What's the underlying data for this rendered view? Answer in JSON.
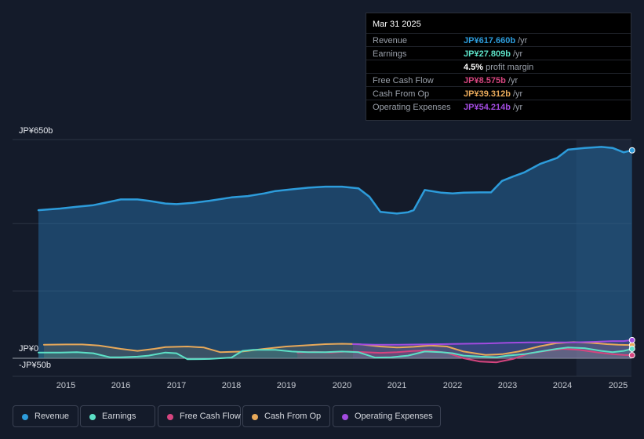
{
  "tooltip": {
    "date": "Mar 31 2025",
    "rows": [
      {
        "label": "Revenue",
        "value": "JP¥617.660b",
        "unit": " /yr",
        "color": "#2d9cdb"
      },
      {
        "label": "Earnings",
        "value": "JP¥27.809b",
        "unit": " /yr",
        "color": "#5ce0c6"
      },
      {
        "label": "",
        "value": "4.5%",
        "unit": " profit margin",
        "color": "#ffffff"
      },
      {
        "label": "Free Cash Flow",
        "value": "JP¥8.575b",
        "unit": " /yr",
        "color": "#d6457f"
      },
      {
        "label": "Cash From Op",
        "value": "JP¥39.312b",
        "unit": " /yr",
        "color": "#e8a95a"
      },
      {
        "label": "Operating Expenses",
        "value": "JP¥54.214b",
        "unit": " /yr",
        "color": "#a24be0"
      }
    ]
  },
  "legend": [
    {
      "label": "Revenue",
      "color": "#2d9cdb"
    },
    {
      "label": "Earnings",
      "color": "#5ce0c6"
    },
    {
      "label": "Free Cash Flow",
      "color": "#d6457f"
    },
    {
      "label": "Cash From Op",
      "color": "#e8a95a"
    },
    {
      "label": "Operating Expenses",
      "color": "#a24be0"
    }
  ],
  "chart_data": {
    "type": "area",
    "title": "",
    "y_tick_labels": [
      "JP¥650b",
      "JP¥0",
      "-JP¥50b"
    ],
    "ylim": [
      -50,
      650
    ],
    "x_ticks": [
      2015,
      2016,
      2017,
      2018,
      2019,
      2020,
      2021,
      2022,
      2023,
      2024,
      2025
    ],
    "x_tick_labels": [
      "2015",
      "2016",
      "2017",
      "2018",
      "2019",
      "2020",
      "2021",
      "2022",
      "2023",
      "2024",
      "2025"
    ],
    "xlim": [
      2014.4,
      2025.3
    ],
    "forecast_start": 2024.25,
    "series": [
      {
        "name": "Revenue",
        "color": "#2d9cdb",
        "x": [
          2014.5,
          2014.9,
          2015.2,
          2015.5,
          2015.8,
          2016.0,
          2016.3,
          2016.5,
          2016.8,
          2017.0,
          2017.3,
          2017.6,
          2018.0,
          2018.3,
          2018.6,
          2018.8,
          2019.1,
          2019.4,
          2019.7,
          2020.0,
          2020.3,
          2020.5,
          2020.7,
          2021.0,
          2021.2,
          2021.3,
          2021.5,
          2021.8,
          2022.0,
          2022.2,
          2022.5,
          2022.7,
          2022.9,
          2023.1,
          2023.3,
          2023.6,
          2023.9,
          2024.1,
          2024.4,
          2024.7,
          2024.9,
          2025.1,
          2025.25
        ],
        "y": [
          440,
          445,
          450,
          455,
          465,
          472,
          472,
          468,
          460,
          458,
          462,
          468,
          478,
          482,
          490,
          497,
          502,
          507,
          510,
          510,
          505,
          480,
          435,
          430,
          434,
          440,
          500,
          492,
          490,
          492,
          493,
          493,
          527,
          540,
          552,
          578,
          595,
          620,
          625,
          628,
          625,
          612,
          618
        ]
      },
      {
        "name": "Earnings",
        "color": "#5ce0c6",
        "x": [
          2014.5,
          2014.9,
          2015.2,
          2015.5,
          2015.8,
          2016.0,
          2016.3,
          2016.5,
          2016.8,
          2017.0,
          2017.2,
          2017.6,
          2018.0,
          2018.2,
          2018.4,
          2018.8,
          2019.1,
          2019.4,
          2019.7,
          2020.0,
          2020.3,
          2020.6,
          2020.9,
          2021.2,
          2021.5,
          2021.8,
          2022.0,
          2022.2,
          2022.5,
          2022.8,
          2023.0,
          2023.3,
          2023.6,
          2023.9,
          2024.1,
          2024.4,
          2024.7,
          2024.9,
          2025.1,
          2025.25
        ],
        "y": [
          17,
          17,
          18,
          15,
          3,
          3,
          5,
          8,
          17,
          15,
          -3,
          -2,
          2,
          22,
          25,
          25,
          20,
          18,
          18,
          20,
          18,
          2,
          3,
          8,
          20,
          18,
          15,
          8,
          5,
          3,
          8,
          12,
          20,
          28,
          32,
          30,
          22,
          18,
          22,
          28
        ]
      },
      {
        "name": "Free Cash Flow",
        "color": "#d6457f",
        "x": [
          2019.2,
          2019.5,
          2019.8,
          2020.1,
          2020.4,
          2020.7,
          2021.0,
          2021.3,
          2021.6,
          2021.9,
          2022.2,
          2022.5,
          2022.8,
          2023.1,
          2023.4,
          2023.7,
          2024.0,
          2024.3,
          2024.6,
          2024.9,
          2025.1,
          2025.25
        ],
        "y": [
          17,
          19,
          17,
          20,
          18,
          16,
          18,
          22,
          23,
          16,
          0,
          -10,
          -12,
          -2,
          15,
          22,
          28,
          25,
          18,
          12,
          10,
          9
        ]
      },
      {
        "name": "Cash From Op",
        "color": "#e8a95a",
        "x": [
          2014.6,
          2015.0,
          2015.3,
          2015.6,
          2016.0,
          2016.3,
          2016.6,
          2016.8,
          2017.2,
          2017.5,
          2017.8,
          2018.2,
          2018.6,
          2019.0,
          2019.3,
          2019.7,
          2020.0,
          2020.3,
          2020.7,
          2021.0,
          2021.3,
          2021.6,
          2021.9,
          2022.2,
          2022.6,
          2022.9,
          2023.2,
          2023.6,
          2023.9,
          2024.2,
          2024.5,
          2024.8,
          2025.0,
          2025.25
        ],
        "y": [
          40,
          41,
          41,
          38,
          28,
          22,
          28,
          33,
          35,
          32,
          18,
          20,
          28,
          35,
          38,
          42,
          43,
          42,
          35,
          32,
          34,
          38,
          35,
          20,
          10,
          12,
          20,
          36,
          45,
          48,
          46,
          42,
          40,
          39
        ]
      },
      {
        "name": "Operating Expenses",
        "color": "#a24be0",
        "x": [
          2020.2,
          2020.6,
          2021.0,
          2021.4,
          2021.8,
          2022.2,
          2022.6,
          2023.0,
          2023.4,
          2023.8,
          2024.2,
          2024.6,
          2024.9,
          2025.1,
          2025.25
        ],
        "y": [
          42,
          40,
          40,
          41,
          42,
          43,
          44,
          46,
          47,
          47,
          47,
          49,
          51,
          51,
          54
        ]
      }
    ]
  }
}
